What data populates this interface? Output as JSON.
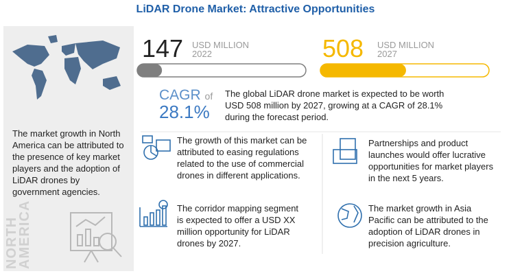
{
  "title": "LiDAR Drone Market: Attractive Opportunities",
  "left_panel": {
    "text": "The market growth in North America can be attributed to the presence of key market players and the adoption of LiDAR drones by government agencies.",
    "region": "NORTH AMERICA"
  },
  "stats": [
    {
      "value": 147,
      "unit": "USD MILLION",
      "year": "2022",
      "color": "#7f7f7f"
    },
    {
      "value": 508,
      "unit": "USD MILLION",
      "year": "2027",
      "color": "#f5b800"
    }
  ],
  "cagr": {
    "label": "CAGR",
    "of": "of",
    "value": "28.1%"
  },
  "summary": "The global LiDAR drone market is expected to be worth USD 508 million by 2027, growing at a CAGR of 28.1% during the forecast period.",
  "points": [
    "The growth of this market can be attributed to easing regulations related to the use of commercial drones in different applications.",
    "Partnerships and product launches would offer lucrative opportunities for market players in the next 5 years.",
    "The corridor mapping segment is expected to offer a USD XX million opportunity for LiDAR drones by 2027.",
    "The market growth in Asia Pacific can be attributed to the adoption of LiDAR drones in precision agriculture."
  ]
}
